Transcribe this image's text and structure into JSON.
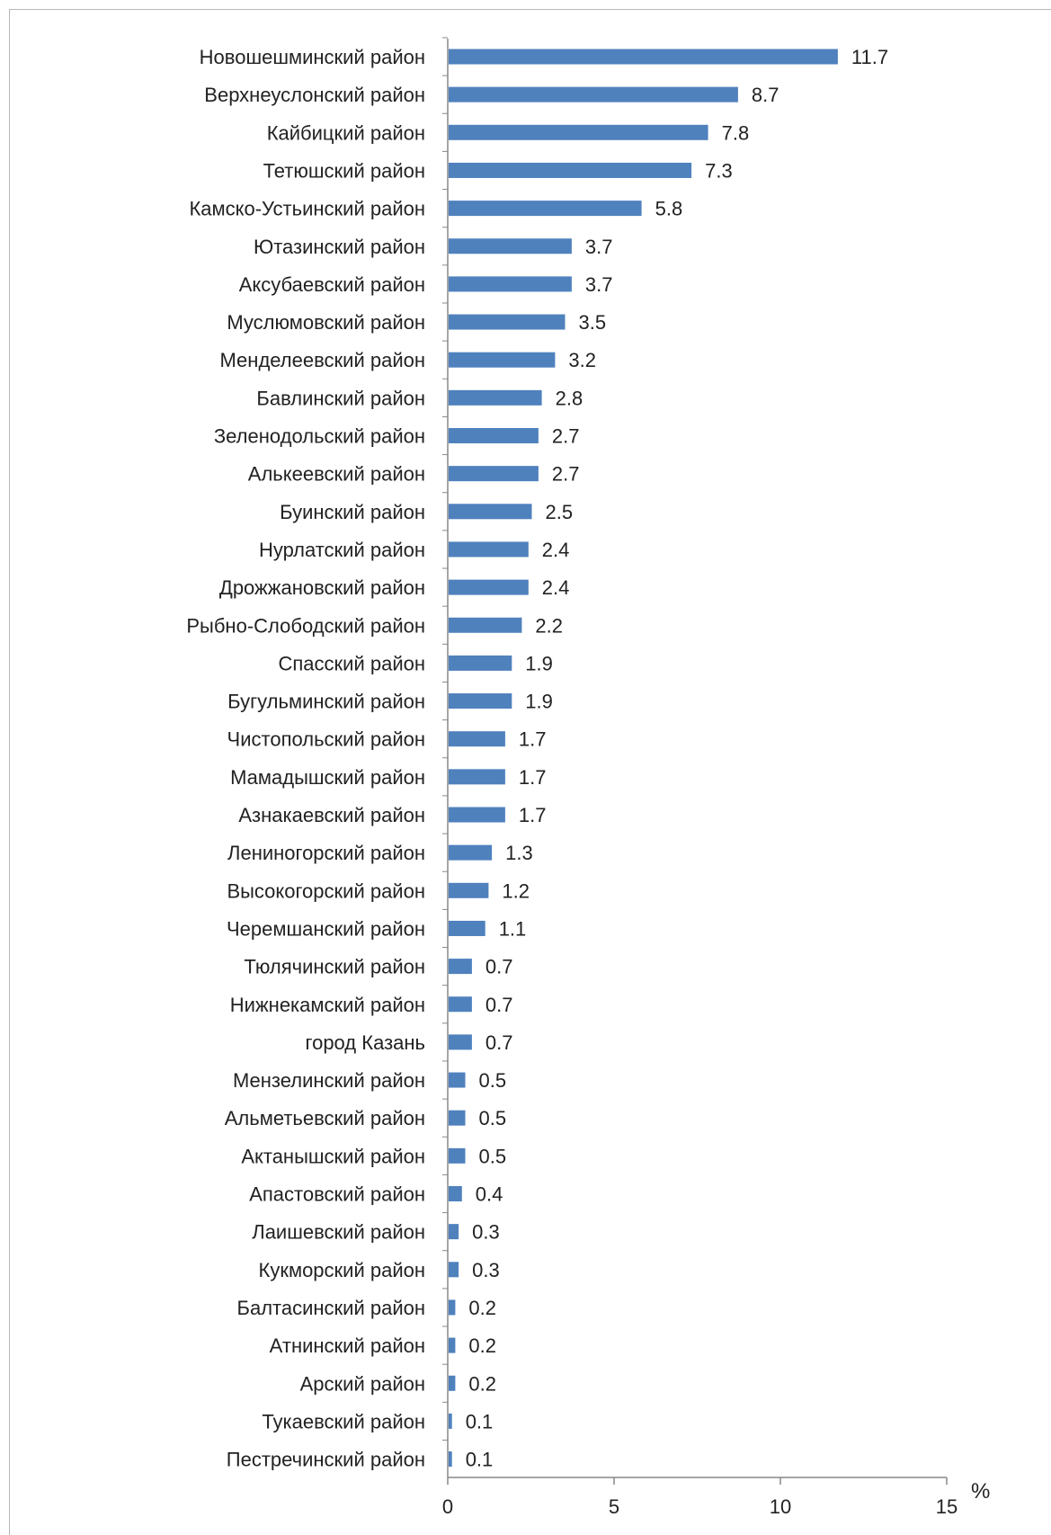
{
  "chart_data": {
    "type": "bar",
    "orientation": "horizontal",
    "categories": [
      "Новошешминский район",
      "Верхнеуслонский район",
      "Кайбицкий район",
      "Тетюшский район",
      "Камско-Устьинский район",
      "Ютазинский район",
      "Аксубаевский район",
      "Муслюмовский район",
      "Менделеевский район",
      "Бавлинский район",
      "Зеленодольский район",
      "Алькеевский район",
      "Буинский район",
      "Нурлатский район",
      "Дрожжановский район",
      "Рыбно-Слободский район",
      "Спасский район",
      "Бугульминский район",
      "Чистопольский район",
      "Мамадышский район",
      "Азнакаевский район",
      "Лениногорский район",
      "Высокогорский район",
      "Черемшанский район",
      "Тюлячинский район",
      "Нижнекамский район",
      "город Казань",
      "Мензелинский район",
      "Альметьевский район",
      "Актанышский район",
      "Апастовский район",
      "Лаишевский район",
      "Кукморский район",
      "Балтасинский район",
      "Атнинский район",
      "Арский район",
      "Тукаевский район",
      "Пестречинский район"
    ],
    "values": [
      11.7,
      8.7,
      7.8,
      7.3,
      5.8,
      3.7,
      3.7,
      3.5,
      3.2,
      2.8,
      2.7,
      2.7,
      2.5,
      2.4,
      2.4,
      2.2,
      1.9,
      1.9,
      1.7,
      1.7,
      1.7,
      1.3,
      1.2,
      1.1,
      0.7,
      0.7,
      0.7,
      0.5,
      0.5,
      0.5,
      0.4,
      0.3,
      0.3,
      0.2,
      0.2,
      0.2,
      0.1,
      0.1
    ],
    "value_labels": [
      "11.7",
      "8.7",
      "7.8",
      "7.3",
      "5.8",
      "3.7",
      "3.7",
      "3.5",
      "3.2",
      "2.8",
      "2.7",
      "2.7",
      "2.5",
      "2.4",
      "2.4",
      "2.2",
      "1.9",
      "1.9",
      "1.7",
      "1.7",
      "1.7",
      "1.3",
      "1.2",
      "1.1",
      "0.7",
      "0.7",
      "0.7",
      "0.5",
      "0.5",
      "0.5",
      "0.4",
      "0.3",
      "0.3",
      "0.2",
      "0.2",
      "0.2",
      "0.1",
      "0.1"
    ],
    "xlim": [
      0,
      15
    ],
    "x_ticks": [
      "0",
      "5",
      "10",
      "15"
    ],
    "x_tick_values": [
      0,
      5,
      10,
      15
    ],
    "xlabel": "%",
    "ylabel": "",
    "title": "",
    "grid": false,
    "legend": "none",
    "bar_color": "#4f81bd",
    "axis_color": "#888888"
  }
}
